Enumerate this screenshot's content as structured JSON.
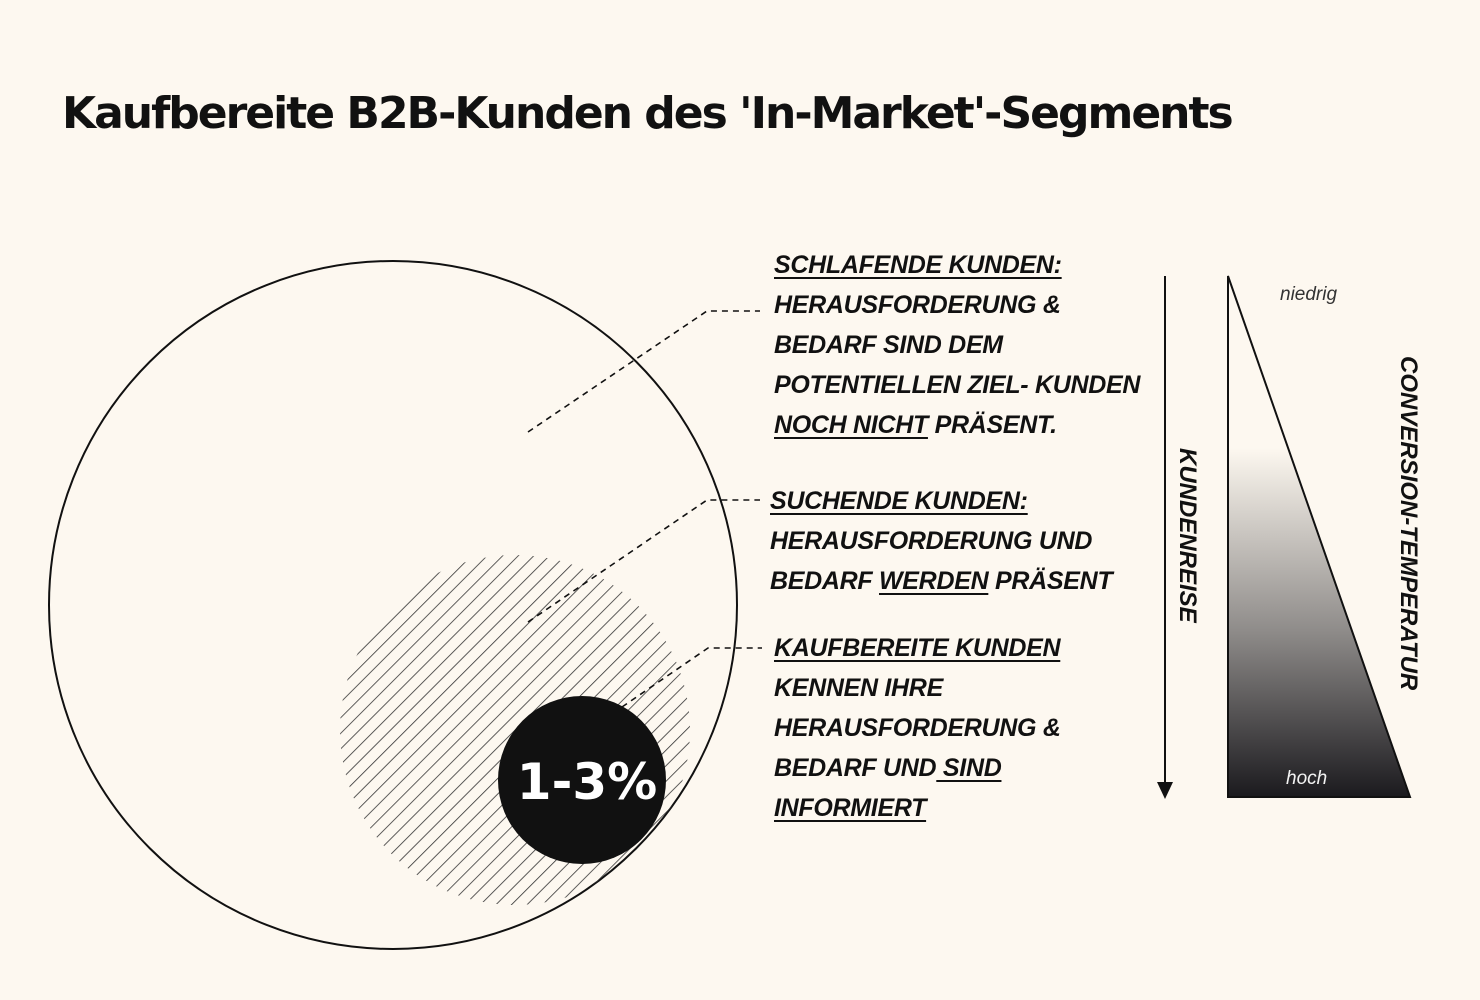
{
  "title": "Kaufbereite B2B-Kunden des  'In-Market'-Segments",
  "center_value": "1-3%",
  "segments": {
    "sleeping": {
      "heading": "SCHLAFENDE KUNDEN:",
      "line1": "HERAUSFORDERUNG &",
      "line2": "BEDARF SIND DEM",
      "line3": "POTENTIELLEN ZIEL- KUNDEN",
      "line4_underlined": "NOCH NICHT",
      "line4_rest": " PRÄSENT."
    },
    "searching": {
      "heading": "SUCHENDE KUNDEN:",
      "line1": "HERAUSFORDERUNG UND",
      "line2_start": "BEDARF ",
      "line2_underlined": "WERDEN",
      "line2_end": " PRÄSENT"
    },
    "ready": {
      "heading": "KAUFBEREITE KUNDEN",
      "line1": "KENNEN IHRE",
      "line2": "HERAUSFORDERUNG &",
      "line3_start": "BEDARF UND",
      "line3_underlined": " SIND",
      "line4_underlined": "INFORMIERT"
    }
  },
  "journey_label": "KUNDENREISE",
  "temperature": {
    "label": "CONVERSION-TEMPERATUR",
    "low": "niedrig",
    "high": "hoch"
  },
  "colors": {
    "background": "#fdf8f0",
    "ink": "#111111",
    "core": "#111111"
  }
}
